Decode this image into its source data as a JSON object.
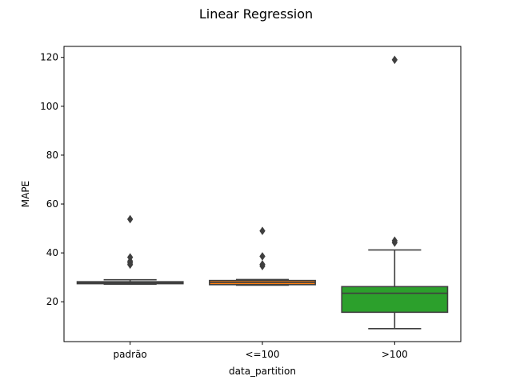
{
  "chart_data": {
    "type": "boxplot",
    "title": "Linear Regression",
    "xlabel": "data_partition",
    "ylabel": "MAPE",
    "ylim": [
      3.7,
      124.5
    ],
    "yticks": [
      20,
      40,
      60,
      80,
      100,
      120
    ],
    "grid": false,
    "categories": [
      "padrão",
      "<=100",
      ">100"
    ],
    "colors": [
      "#1f77b4",
      "#ff7f0e",
      "#2ca02c"
    ],
    "edge_color": "#3f3f3f",
    "boxes": [
      {
        "category": "padrão",
        "whisker_low": 27.2,
        "q1": 27.4,
        "median": 27.8,
        "q3": 28.2,
        "whisker_high": 29.0,
        "outliers": [
          53.8,
          38.2,
          36.6,
          35.9,
          35.2
        ]
      },
      {
        "category": "<=100",
        "whisker_low": 26.8,
        "q1": 27.0,
        "median": 27.9,
        "q3": 28.7,
        "whisker_high": 29.1,
        "outliers": [
          49.0,
          38.6,
          35.3,
          34.6
        ]
      },
      {
        "category": ">100",
        "whisker_low": 9.0,
        "q1": 15.7,
        "median": 23.5,
        "q3": 26.2,
        "whisker_high": 41.2,
        "outliers": [
          119.0,
          45.0,
          44.2
        ]
      }
    ]
  }
}
